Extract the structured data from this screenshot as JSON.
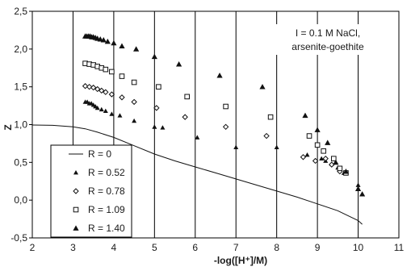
{
  "chart_data": {
    "type": "scatter",
    "title": "",
    "xlabel": "-log([H⁺]/M)",
    "ylabel": "Z",
    "xlim": [
      2,
      11
    ],
    "ylim": [
      -0.5,
      2.5
    ],
    "xticks": [
      "2",
      "3",
      "4",
      "5",
      "6",
      "7",
      "8",
      "9",
      "10",
      "11"
    ],
    "yticks": [
      "-0,5",
      "0,0",
      "0,5",
      "1,0",
      "1,5",
      "2,0",
      "2,5"
    ],
    "grid": "vertical",
    "legend_position": "bottom-left",
    "annotation": [
      "I = 0.1 M NaCl,",
      "arsenite-goethite"
    ],
    "series": [
      {
        "name": "R = 0",
        "marker": "line",
        "x": [
          2.0,
          2.5,
          3.0,
          3.3,
          3.6,
          4.0,
          4.5,
          5.0,
          5.5,
          6.0,
          6.5,
          7.0,
          7.5,
          8.0,
          8.5,
          9.0,
          9.5,
          10.0,
          10.1
        ],
        "y": [
          0.995,
          0.99,
          0.97,
          0.945,
          0.9,
          0.83,
          0.72,
          0.61,
          0.52,
          0.44,
          0.36,
          0.28,
          0.2,
          0.12,
          0.04,
          -0.05,
          -0.14,
          -0.27,
          -0.32
        ]
      },
      {
        "name": "R = 0.52",
        "marker": "filled-triangle-small",
        "x": [
          3.3,
          3.35,
          3.4,
          3.45,
          3.5,
          3.55,
          3.6,
          3.7,
          3.8,
          3.95,
          4.15,
          4.5,
          5.0,
          5.2,
          6.05,
          7.0,
          8.0,
          8.75,
          9.1,
          9.2,
          9.35,
          9.5,
          9.65,
          10.0
        ],
        "y": [
          1.3,
          1.3,
          1.28,
          1.28,
          1.26,
          1.24,
          1.22,
          1.2,
          1.18,
          1.14,
          1.12,
          1.05,
          0.97,
          0.96,
          0.83,
          0.7,
          0.7,
          0.6,
          0.55,
          0.52,
          0.48,
          0.43,
          0.36,
          0.2
        ]
      },
      {
        "name": "R = 0.78",
        "marker": "open-diamond",
        "x": [
          3.3,
          3.4,
          3.5,
          3.6,
          3.7,
          3.8,
          3.95,
          4.2,
          4.5,
          5.05,
          5.75,
          6.75,
          7.75,
          8.65,
          8.95,
          9.2,
          9.35,
          9.55
        ],
        "y": [
          1.51,
          1.5,
          1.49,
          1.47,
          1.45,
          1.43,
          1.4,
          1.36,
          1.3,
          1.22,
          1.1,
          0.97,
          0.85,
          0.57,
          0.52,
          0.55,
          0.47,
          0.38
        ]
      },
      {
        "name": "R = 1.09",
        "marker": "open-square",
        "x": [
          3.3,
          3.4,
          3.5,
          3.6,
          3.7,
          3.8,
          3.95,
          4.2,
          4.5,
          5.1,
          5.8,
          6.75,
          7.85,
          8.8,
          9.0,
          9.15,
          9.4,
          9.55,
          9.7
        ],
        "y": [
          1.81,
          1.8,
          1.79,
          1.77,
          1.75,
          1.73,
          1.7,
          1.64,
          1.56,
          1.5,
          1.37,
          1.24,
          1.1,
          0.85,
          0.73,
          0.65,
          0.55,
          0.42,
          0.36
        ]
      },
      {
        "name": "R = 1.40",
        "marker": "filled-triangle",
        "x": [
          3.3,
          3.34,
          3.38,
          3.42,
          3.46,
          3.5,
          3.55,
          3.6,
          3.67,
          3.75,
          3.85,
          4.0,
          4.2,
          4.55,
          5.0,
          5.6,
          6.6,
          7.65,
          8.7,
          9.0,
          9.25,
          9.45,
          9.7,
          10.0,
          10.1
        ],
        "y": [
          2.17,
          2.17,
          2.17,
          2.17,
          2.16,
          2.16,
          2.15,
          2.14,
          2.13,
          2.12,
          2.1,
          2.08,
          2.04,
          2.0,
          1.9,
          1.8,
          1.65,
          1.5,
          1.12,
          0.93,
          0.76,
          0.5,
          0.38,
          0.15,
          0.08
        ]
      }
    ]
  }
}
